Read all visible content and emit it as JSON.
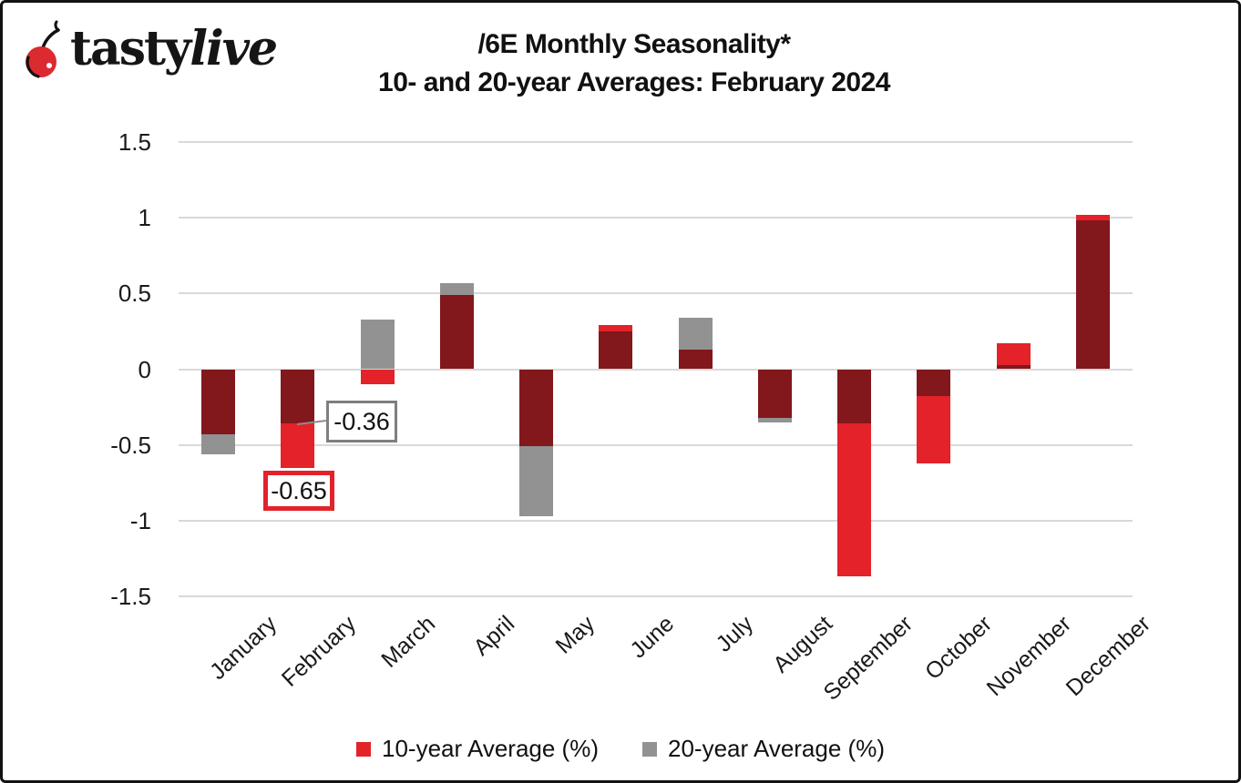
{
  "logo": {
    "brand_bold": "tasty",
    "brand_italic": "live"
  },
  "header": {
    "title": "/6E Monthly Seasonality*",
    "subtitle": "10- and 20-year Averages: February 2024"
  },
  "chart_data": {
    "type": "bar",
    "bar_mode": "overlapped",
    "title": "/6E Monthly Seasonality*",
    "subtitle": "10- and 20-year Averages: February 2024",
    "categories": [
      "January",
      "February",
      "March",
      "April",
      "May",
      "June",
      "July",
      "August",
      "September",
      "October",
      "November",
      "December"
    ],
    "series": [
      {
        "name": "10-year Average (%)",
        "color": "#E3222A",
        "values": [
          -0.43,
          -0.65,
          -0.1,
          0.49,
          -0.51,
          0.29,
          0.13,
          -0.32,
          -1.37,
          -0.62,
          0.17,
          1.02
        ]
      },
      {
        "name": "20-year Average (%)",
        "color": "#929292",
        "values": [
          -0.56,
          -0.36,
          0.33,
          0.57,
          -0.97,
          0.25,
          0.34,
          -0.35,
          -0.36,
          -0.18,
          0.03,
          0.98
        ]
      }
    ],
    "overlap_color": "#82171C",
    "ylim": [
      -1.5,
      1.5
    ],
    "y_ticks": [
      1.5,
      1,
      0.5,
      0,
      -0.5,
      -1,
      -1.5
    ],
    "y_tick_labels": [
      "1.5",
      "1",
      "0.5",
      "0",
      "-0.5",
      "-1",
      "-1.5"
    ],
    "grid": true,
    "gridline_color": "#D9D9D9",
    "legend_position": "bottom",
    "annotations": [
      {
        "text": "-0.36",
        "category": "February",
        "series": "20-year Average (%)",
        "value": -0.36,
        "box_border_color": "#7F7F7F"
      },
      {
        "text": "-0.65",
        "category": "February",
        "series": "10-year Average (%)",
        "value": -0.65,
        "box_border_color": "#E3222A"
      }
    ]
  },
  "legend": {
    "items": [
      {
        "label": "10-year Average (%)",
        "color": "#E3222A"
      },
      {
        "label": "20-year Average (%)",
        "color": "#929292"
      }
    ]
  }
}
